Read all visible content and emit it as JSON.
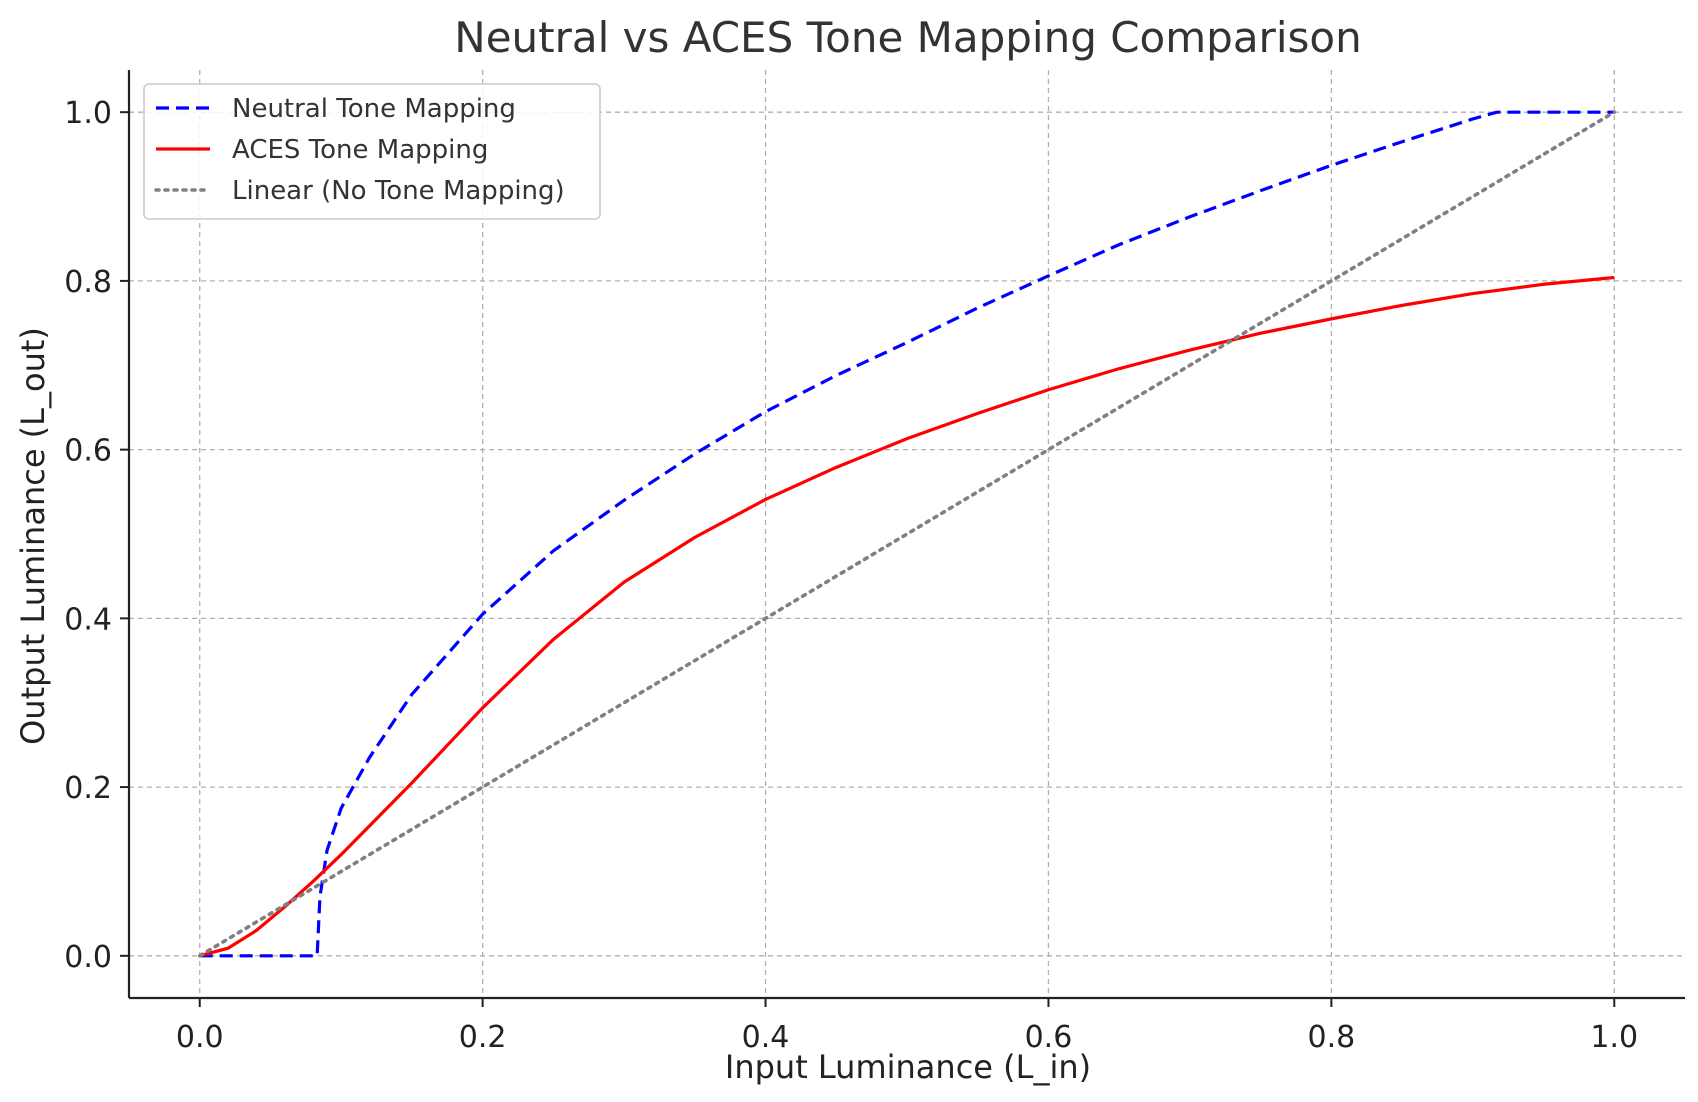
{
  "chart_data": {
    "type": "line",
    "title": "Neutral vs ACES Tone Mapping Comparison",
    "xlabel": "Input Luminance (L_in)",
    "ylabel": "Output Luminance (L_out)",
    "xlim": [
      -0.05,
      1.05
    ],
    "ylim": [
      -0.05,
      1.05
    ],
    "xticks": [
      "0.0",
      "0.2",
      "0.4",
      "0.6",
      "0.8",
      "1.0"
    ],
    "yticks": [
      "0.0",
      "0.2",
      "0.4",
      "0.6",
      "0.8",
      "1.0"
    ],
    "grid": true,
    "legend_position": "top-left",
    "series": [
      {
        "name": "Neutral Tone Mapping",
        "color": "#0000ff",
        "style": "dashed",
        "x": [
          0.0,
          0.02,
          0.04,
          0.06,
          0.083,
          0.085,
          0.09,
          0.1,
          0.12,
          0.15,
          0.2,
          0.25,
          0.3,
          0.35,
          0.4,
          0.45,
          0.5,
          0.55,
          0.6,
          0.65,
          0.7,
          0.75,
          0.8,
          0.85,
          0.9,
          0.917,
          0.95,
          1.0
        ],
        "y": [
          0.0,
          0.0,
          0.0,
          0.0,
          0.0,
          0.07,
          0.125,
          0.175,
          0.235,
          0.31,
          0.405,
          0.48,
          0.54,
          0.595,
          0.645,
          0.688,
          0.727,
          0.768,
          0.806,
          0.843,
          0.876,
          0.907,
          0.937,
          0.965,
          0.992,
          1.0,
          1.0,
          1.0
        ]
      },
      {
        "name": "ACES Tone Mapping",
        "color": "#ff0000",
        "style": "solid",
        "x": [
          0.0,
          0.02,
          0.04,
          0.06,
          0.08,
          0.1,
          0.15,
          0.2,
          0.25,
          0.3,
          0.35,
          0.4,
          0.45,
          0.5,
          0.55,
          0.6,
          0.65,
          0.7,
          0.75,
          0.8,
          0.85,
          0.9,
          0.95,
          1.0
        ],
        "y": [
          0.0,
          0.009,
          0.03,
          0.058,
          0.088,
          0.12,
          0.205,
          0.294,
          0.375,
          0.443,
          0.496,
          0.541,
          0.579,
          0.613,
          0.643,
          0.671,
          0.696,
          0.718,
          0.738,
          0.755,
          0.771,
          0.785,
          0.796,
          0.804
        ]
      },
      {
        "name": "Linear (No Tone Mapping)",
        "color": "#808080",
        "style": "dotted",
        "x": [
          0.0,
          1.0
        ],
        "y": [
          0.0,
          1.0
        ]
      }
    ]
  }
}
